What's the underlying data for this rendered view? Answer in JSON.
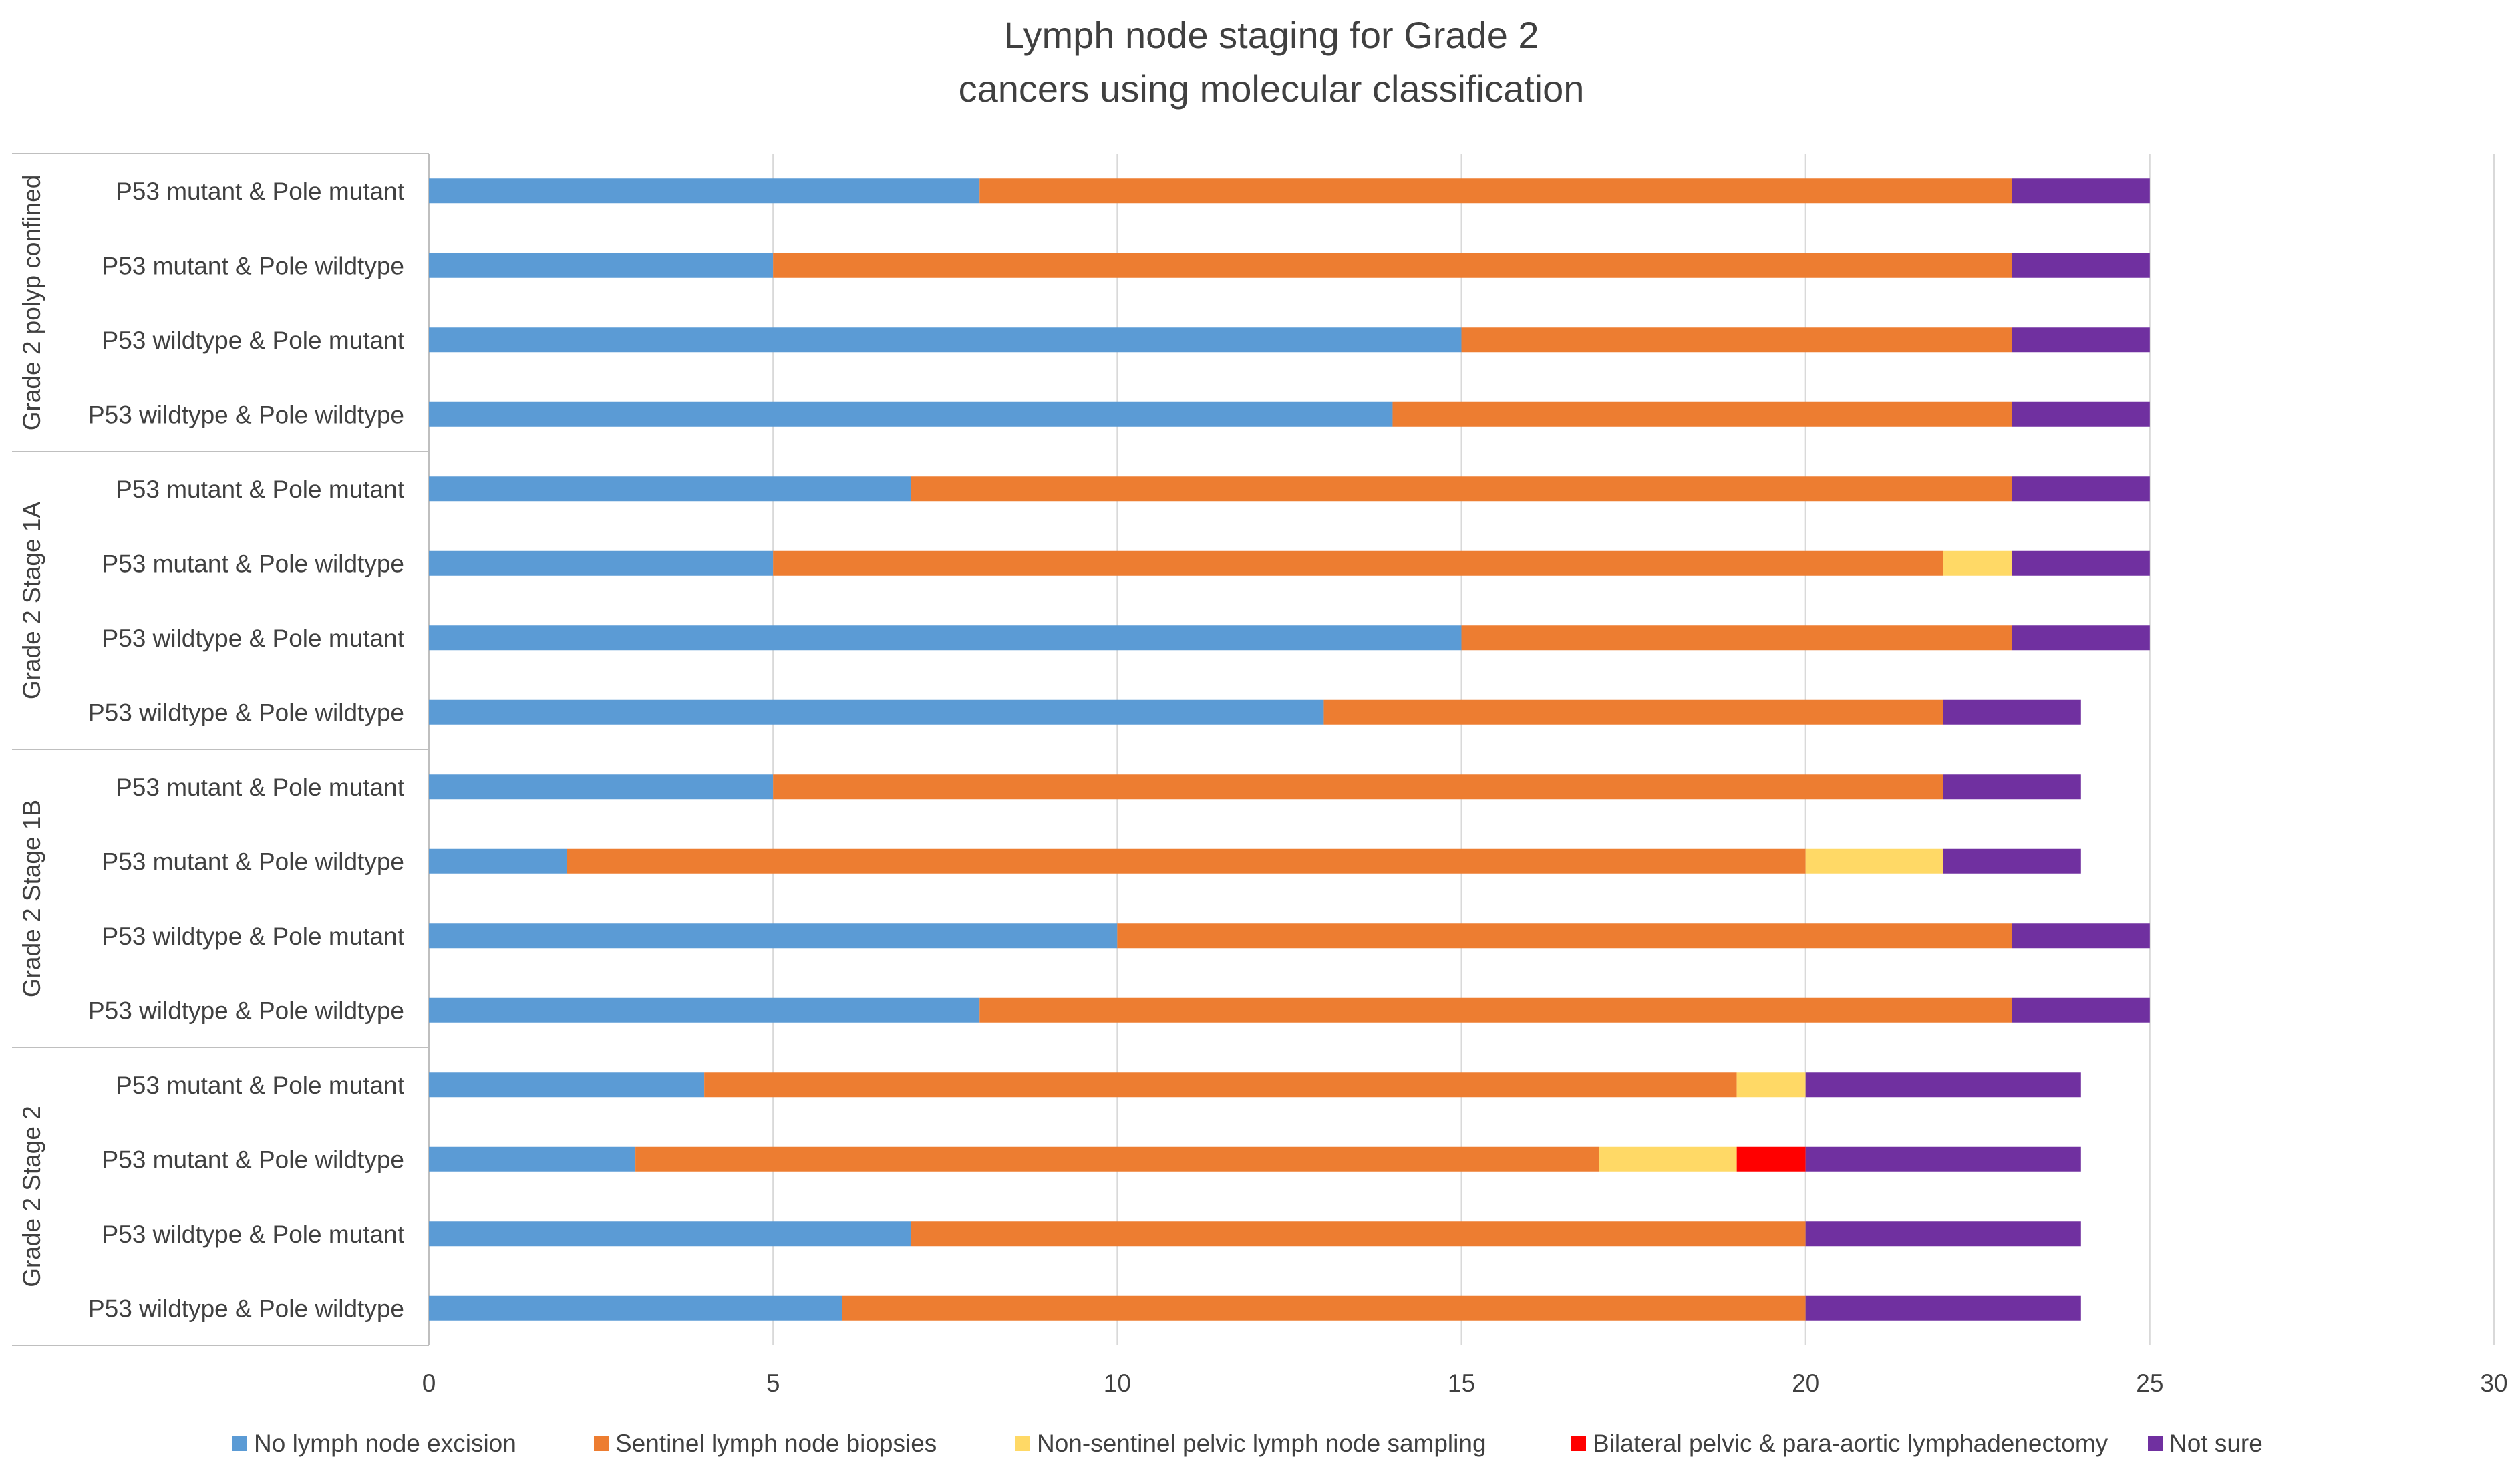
{
  "chart_data": {
    "type": "bar",
    "orientation": "horizontal",
    "stacked": true,
    "title_lines": [
      "Lymph node staging for Grade 2",
      "cancers using molecular classification"
    ],
    "xlabel": "",
    "ylabel": "",
    "xlim": [
      0,
      30
    ],
    "x_ticks": [
      "0",
      "5",
      "10",
      "15",
      "20",
      "25",
      "30"
    ],
    "grid": true,
    "legend_position": "bottom",
    "groups": [
      {
        "label": "Grade 2 polyp confined",
        "categories": [
          "P53 mutant & Pole mutant",
          "P53 mutant & Pole wildtype",
          "P53 wildtype & Pole mutant",
          "P53 wildtype & Pole wildtype"
        ]
      },
      {
        "label": "Grade 2 Stage 1A",
        "categories": [
          "P53 mutant & Pole mutant",
          "P53 mutant & Pole wildtype",
          "P53 wildtype & Pole mutant",
          "P53 wildtype & Pole wildtype"
        ]
      },
      {
        "label": "Grade 2 Stage 1B",
        "categories": [
          "P53 mutant & Pole mutant",
          "P53 mutant & Pole wildtype",
          "P53 wildtype & Pole mutant",
          "P53 wildtype & Pole wildtype"
        ]
      },
      {
        "label": "Grade 2 Stage 2",
        "categories": [
          "P53 mutant & Pole mutant",
          "P53 mutant & Pole wildtype",
          "P53 wildtype & Pole mutant",
          "P53 wildtype & Pole wildtype"
        ]
      }
    ],
    "series": [
      {
        "name": "No lymph node excision",
        "color": "#5B9BD5",
        "values": [
          8,
          5,
          15,
          14,
          7,
          5,
          15,
          13,
          5,
          2,
          10,
          8,
          4,
          3,
          7,
          6
        ]
      },
      {
        "name": "Sentinel lymph node biopsies",
        "color": "#ED7D31",
        "values": [
          15,
          18,
          8,
          9,
          16,
          17,
          8,
          9,
          17,
          18,
          13,
          15,
          15,
          14,
          13,
          14
        ]
      },
      {
        "name": "Non-sentinel pelvic lymph node sampling",
        "color": "#FFD966",
        "values": [
          0,
          0,
          0,
          0,
          0,
          1,
          0,
          0,
          0,
          2,
          0,
          0,
          1,
          2,
          0,
          0
        ]
      },
      {
        "name": "Bilateral pelvic & para-aortic lymphadenectomy",
        "color": "#FF0000",
        "values": [
          0,
          0,
          0,
          0,
          0,
          0,
          0,
          0,
          0,
          0,
          0,
          0,
          0,
          1,
          0,
          0
        ]
      },
      {
        "name": "Not sure",
        "color": "#7030A0",
        "values": [
          2,
          2,
          2,
          2,
          2,
          2,
          2,
          2,
          2,
          2,
          2,
          2,
          4,
          4,
          4,
          4
        ]
      }
    ]
  }
}
